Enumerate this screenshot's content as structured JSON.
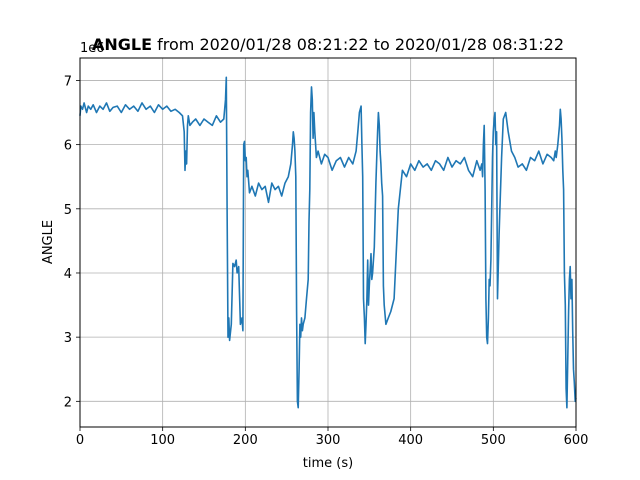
{
  "chart_data": {
    "type": "line",
    "title_bold": "ANGLE",
    "title_rest": " from 2020/01/28 08:21:22 to 2020/01/28 08:31:22",
    "xlabel": "time (s)",
    "ylabel": "ANGLE",
    "y_multiplier": "1e6",
    "xlim": [
      0,
      600
    ],
    "ylim": [
      1.6,
      7.35
    ],
    "xticks": [
      0,
      100,
      200,
      300,
      400,
      500,
      600
    ],
    "xtick_labels": [
      "0",
      "100",
      "200",
      "300",
      "400",
      "500",
      "600"
    ],
    "yticks": [
      2,
      3,
      4,
      5,
      6,
      7
    ],
    "ytick_labels": [
      "2",
      "3",
      "4",
      "5",
      "6",
      "7"
    ],
    "grid": true,
    "line_color": "#1f77b4",
    "series": [
      {
        "x": [
          0,
          1,
          3,
          5,
          8,
          10,
          13,
          16,
          20,
          24,
          28,
          32,
          36,
          40,
          45,
          50,
          55,
          60,
          65,
          70,
          75,
          80,
          85,
          90,
          95,
          100,
          105,
          110,
          115,
          120,
          124,
          126,
          127,
          128,
          129,
          130,
          131,
          133,
          136,
          140,
          145,
          150,
          155,
          160,
          165,
          170,
          174,
          176,
          177,
          178,
          179,
          180,
          181,
          183,
          185,
          187,
          189,
          190,
          192,
          194,
          196,
          197,
          198,
          199,
          200,
          201,
          202,
          203,
          205,
          208,
          212,
          216,
          220,
          224,
          228,
          232,
          236,
          240,
          244,
          248,
          252,
          255,
          257,
          258,
          259,
          260,
          261,
          262,
          263,
          264,
          265,
          266,
          267,
          268,
          269,
          270,
          272,
          274,
          276,
          277,
          278,
          279,
          280,
          281,
          282,
          283,
          284,
          285,
          286,
          288,
          292,
          296,
          300,
          305,
          310,
          315,
          320,
          325,
          330,
          334,
          336,
          338,
          340,
          341,
          342,
          343,
          344,
          345,
          346,
          347,
          348,
          349,
          350,
          352,
          353,
          354,
          356,
          358,
          360,
          361,
          362,
          363,
          364,
          365,
          366,
          367,
          368,
          370,
          373,
          376,
          380,
          385,
          390,
          395,
          400,
          405,
          410,
          415,
          420,
          425,
          430,
          435,
          440,
          445,
          450,
          455,
          460,
          465,
          470,
          475,
          480,
          484,
          486,
          487,
          488,
          489,
          490,
          491,
          492,
          493,
          494,
          495,
          496,
          497,
          498,
          499,
          500,
          501,
          502,
          503,
          504,
          505,
          506,
          507,
          508,
          510,
          512,
          515,
          518,
          522,
          526,
          530,
          535,
          540,
          545,
          550,
          555,
          560,
          565,
          570,
          573,
          575,
          576,
          577,
          578,
          580,
          581,
          582,
          583,
          584,
          585,
          586,
          587,
          588,
          589,
          590,
          591,
          592,
          593,
          594,
          595,
          596,
          597,
          598,
          599,
          600
        ],
        "y": [
          6.45,
          6.6,
          6.55,
          6.65,
          6.5,
          6.6,
          6.55,
          6.62,
          6.5,
          6.6,
          6.55,
          6.65,
          6.52,
          6.58,
          6.6,
          6.5,
          6.62,
          6.55,
          6.6,
          6.52,
          6.65,
          6.55,
          6.6,
          6.5,
          6.62,
          6.55,
          6.6,
          6.52,
          6.55,
          6.5,
          6.45,
          6.2,
          5.6,
          5.9,
          5.7,
          6.3,
          6.45,
          6.3,
          6.35,
          6.4,
          6.3,
          6.4,
          6.35,
          6.3,
          6.45,
          6.35,
          6.4,
          6.7,
          7.05,
          5.0,
          3.0,
          3.3,
          2.95,
          3.2,
          4.15,
          4.1,
          4.2,
          4.0,
          4.1,
          3.2,
          3.3,
          3.1,
          6.0,
          6.05,
          5.75,
          5.8,
          5.5,
          5.6,
          5.25,
          5.35,
          5.2,
          5.4,
          5.3,
          5.35,
          5.1,
          5.4,
          5.3,
          5.35,
          5.2,
          5.4,
          5.5,
          5.7,
          6.0,
          6.2,
          6.1,
          5.9,
          5.5,
          3.4,
          2.0,
          1.9,
          2.5,
          3.2,
          3.0,
          3.3,
          3.1,
          3.2,
          3.3,
          3.6,
          3.9,
          4.8,
          5.3,
          6.5,
          6.9,
          6.7,
          6.1,
          6.5,
          6.2,
          6.0,
          5.8,
          5.9,
          5.7,
          5.85,
          5.8,
          5.6,
          5.75,
          5.8,
          5.65,
          5.8,
          5.7,
          5.9,
          6.2,
          6.5,
          6.6,
          6.0,
          5.5,
          3.6,
          3.3,
          2.9,
          3.2,
          3.6,
          4.2,
          3.5,
          3.8,
          4.3,
          3.9,
          4.0,
          4.4,
          5.4,
          6.2,
          6.5,
          6.3,
          5.9,
          5.7,
          5.4,
          5.2,
          3.8,
          3.5,
          3.2,
          3.3,
          3.4,
          3.6,
          5.0,
          5.6,
          5.5,
          5.7,
          5.6,
          5.75,
          5.65,
          5.7,
          5.6,
          5.75,
          5.7,
          5.6,
          5.8,
          5.65,
          5.75,
          5.7,
          5.8,
          5.6,
          5.5,
          5.75,
          5.6,
          5.7,
          5.5,
          6.0,
          6.3,
          5.3,
          3.6,
          3.0,
          2.9,
          3.3,
          3.9,
          3.8,
          4.2,
          5.0,
          5.8,
          6.2,
          6.4,
          6.5,
          6.0,
          6.2,
          3.6,
          4.1,
          4.6,
          5.0,
          5.8,
          6.4,
          6.5,
          6.2,
          5.9,
          5.8,
          5.65,
          5.7,
          5.6,
          5.8,
          5.75,
          5.9,
          5.7,
          5.85,
          5.8,
          5.75,
          5.9,
          5.8,
          5.9,
          6.0,
          6.3,
          6.55,
          6.4,
          6.1,
          5.6,
          5.3,
          4.0,
          3.5,
          2.2,
          1.9,
          2.6,
          3.4,
          3.9,
          4.1,
          3.6,
          3.9,
          3.1,
          2.5,
          2.3,
          2.0,
          2.05
        ]
      }
    ]
  }
}
